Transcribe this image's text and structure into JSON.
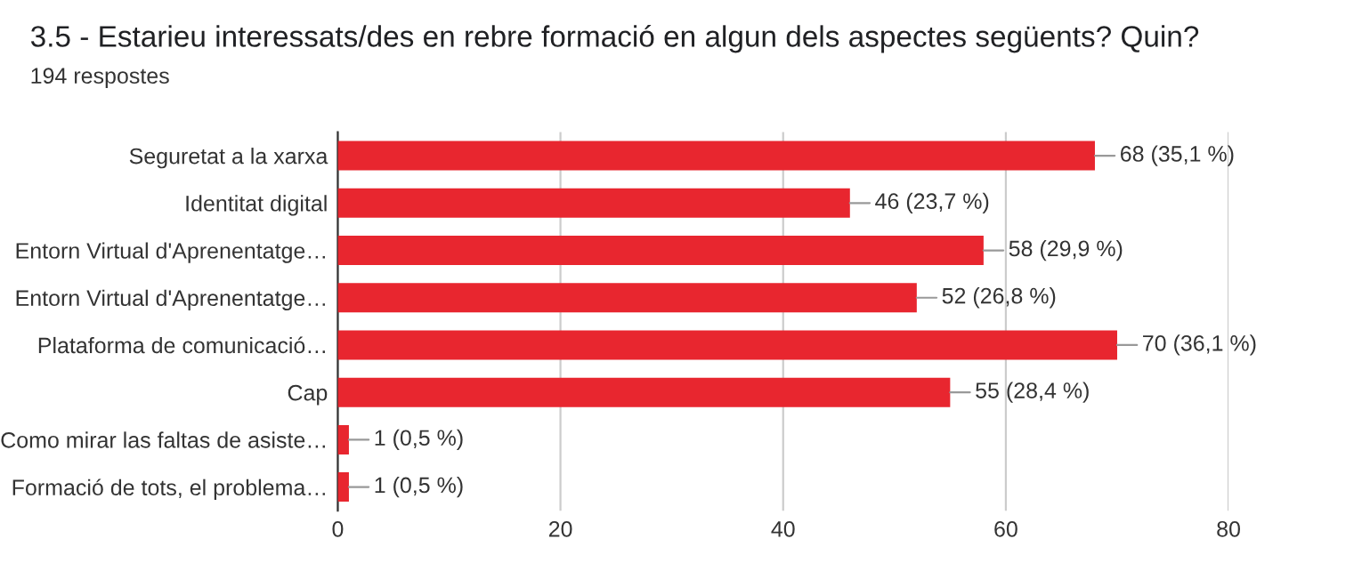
{
  "chart_data": {
    "type": "bar",
    "orientation": "horizontal",
    "title": "3.5 - Estarieu interessats/des en rebre formació en algun dels aspectes següents? Quin?",
    "subtitle": "194 respostes",
    "categories": [
      "Seguretat a la xarxa",
      "Identitat digital",
      "Entorn Virtual d'Aprenentatge…",
      "Entorn Virtual d'Aprenentatge…",
      "Plataforma de comunicació…",
      "Cap",
      "Como mirar las faltas de asiste…",
      "Formació de tots, el problema…"
    ],
    "values": [
      68,
      46,
      58,
      52,
      70,
      55,
      1,
      1
    ],
    "value_labels": [
      "68 (35,1 %)",
      "46 (23,7 %)",
      "58 (29,9 %)",
      "52 (26,8 %)",
      "70 (36,1 %)",
      "55 (28,4 %)",
      "1 (0,5 %)",
      "1 (0,5 %)"
    ],
    "color": "#e8262f",
    "xlim": [
      0,
      80
    ],
    "xticks": [
      0,
      20,
      40,
      60,
      80
    ],
    "grid": "x",
    "legend": false
  }
}
